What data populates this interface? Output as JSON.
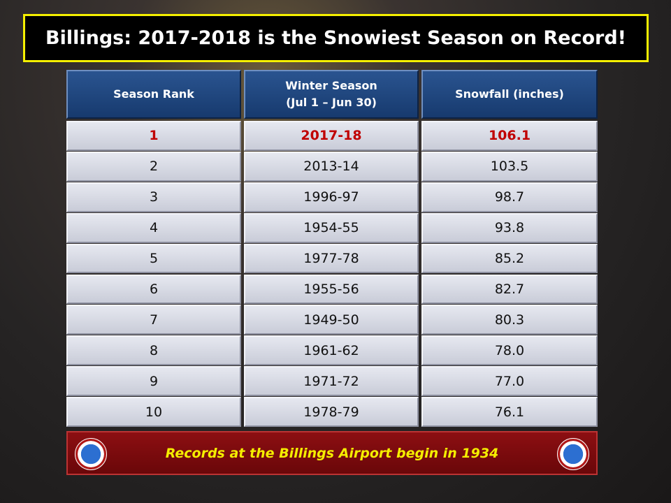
{
  "header": {
    "title": "Billings: 2017-2018 is the Snowiest Season on Record!"
  },
  "table": {
    "columns": [
      [
        "Season Rank"
      ],
      [
        "Winter Season",
        "(Jul 1 – Jun 30)"
      ],
      [
        "Snowfall (inches)"
      ]
    ],
    "rows": [
      [
        "1",
        "2017-18",
        "106.1"
      ],
      [
        "2",
        "2013-14",
        "103.5"
      ],
      [
        "3",
        "1996-97",
        "98.7"
      ],
      [
        "4",
        "1954-55",
        "93.8"
      ],
      [
        "5",
        "1977-78",
        "85.2"
      ],
      [
        "6",
        "1955-56",
        "82.7"
      ],
      [
        "7",
        "1949-50",
        "80.3"
      ],
      [
        "8",
        "1961-62",
        "78.0"
      ],
      [
        "9",
        "1971-72",
        "77.0"
      ],
      [
        "10",
        "1978-79",
        "76.1"
      ]
    ]
  },
  "footer": {
    "note": "Records at the Billings Airport begin in 1934"
  }
}
